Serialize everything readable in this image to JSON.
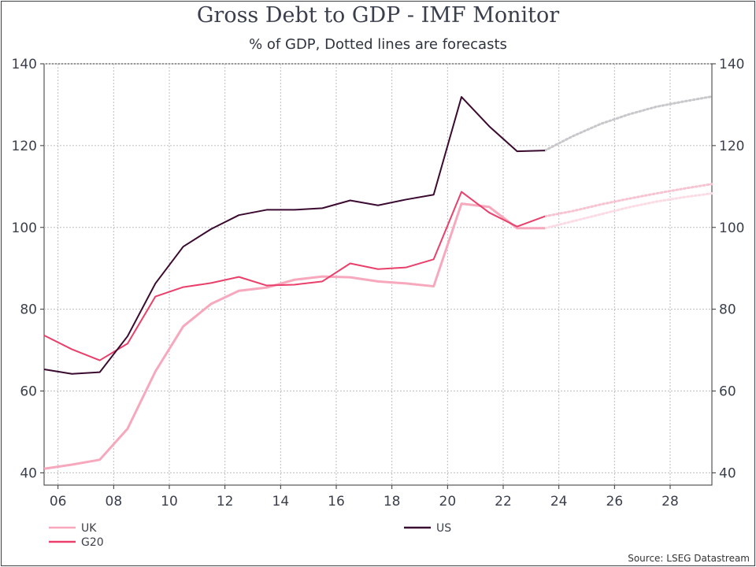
{
  "chart_data": {
    "type": "line",
    "title": "Gross Debt to GDP - IMF Monitor",
    "subtitle": "% of GDP, Dotted lines are forecasts",
    "source": "Source: LSEG Datastream",
    "xlabel": "",
    "ylabel": "",
    "xlim": [
      2005.5,
      2029.5
    ],
    "ylim": [
      37,
      140
    ],
    "y_ticks": [
      40,
      60,
      80,
      100,
      120,
      140
    ],
    "x_ticks": [
      {
        "value": 2006,
        "label": "06"
      },
      {
        "value": 2008,
        "label": "08"
      },
      {
        "value": 2010,
        "label": "10"
      },
      {
        "value": 2012,
        "label": "12"
      },
      {
        "value": 2014,
        "label": "14"
      },
      {
        "value": 2016,
        "label": "16"
      },
      {
        "value": 2018,
        "label": "18"
      },
      {
        "value": 2020,
        "label": "20"
      },
      {
        "value": 2022,
        "label": "22"
      },
      {
        "value": 2024,
        "label": "24"
      },
      {
        "value": 2026,
        "label": "26"
      },
      {
        "value": 2028,
        "label": "28"
      }
    ],
    "grid": true,
    "series": [
      {
        "name": "UK",
        "color": "#f7a8bd",
        "x": [
          2005.5,
          2006.5,
          2007.5,
          2008.5,
          2009.5,
          2010.5,
          2011.5,
          2012.5,
          2013.5,
          2014.5,
          2015.5,
          2016.5,
          2017.5,
          2018.5,
          2019.5,
          2020.5,
          2021.5,
          2022.5,
          2023.5
        ],
        "values": [
          41.0,
          42.0,
          43.2,
          50.8,
          64.8,
          75.8,
          81.3,
          84.5,
          85.3,
          87.2,
          88.0,
          87.8,
          86.8,
          86.3,
          85.6,
          105.8,
          105.0,
          99.8,
          99.8
        ],
        "forecast_x": [
          2023.5,
          2024.5,
          2025.5,
          2026.5,
          2027.5,
          2028.5,
          2029.5
        ],
        "forecast_values": [
          99.8,
          101.5,
          103.2,
          104.9,
          106.3,
          107.4,
          108.3
        ]
      },
      {
        "name": "G20",
        "color": "#ea3f6a",
        "x": [
          2005.5,
          2006.5,
          2007.5,
          2008.5,
          2009.5,
          2010.5,
          2011.5,
          2012.5,
          2013.5,
          2014.5,
          2015.5,
          2016.5,
          2017.5,
          2018.5,
          2019.5,
          2020.5,
          2021.5,
          2022.5,
          2023.5
        ],
        "values": [
          73.6,
          70.2,
          67.5,
          71.6,
          83.1,
          85.4,
          86.4,
          87.9,
          85.8,
          86.0,
          86.8,
          91.2,
          89.8,
          90.2,
          92.2,
          108.7,
          103.6,
          100.2,
          102.7
        ],
        "forecast_x": [
          2023.5,
          2024.5,
          2025.5,
          2026.5,
          2027.5,
          2028.5,
          2029.5
        ],
        "forecast_values": [
          102.7,
          104.0,
          105.6,
          107.0,
          108.3,
          109.5,
          110.6
        ]
      },
      {
        "name": "US",
        "color": "#3b0a30",
        "x": [
          2005.5,
          2006.5,
          2007.5,
          2008.5,
          2009.5,
          2010.5,
          2011.5,
          2012.5,
          2013.5,
          2014.5,
          2015.5,
          2016.5,
          2017.5,
          2018.5,
          2019.5,
          2020.5,
          2021.5,
          2022.5,
          2023.5
        ],
        "values": [
          65.3,
          64.2,
          64.6,
          73.4,
          86.3,
          95.3,
          99.6,
          103.0,
          104.3,
          104.3,
          104.7,
          106.6,
          105.4,
          106.8,
          108.0,
          131.9,
          124.7,
          118.6,
          118.8
        ],
        "forecast_x": [
          2023.5,
          2024.5,
          2025.5,
          2026.5,
          2027.5,
          2028.5,
          2029.5
        ],
        "forecast_values": [
          118.8,
          122.3,
          125.3,
          127.6,
          129.5,
          130.8,
          132.0
        ]
      }
    ],
    "forecast_color": "#c8c8cc",
    "legend_position": "bottom"
  }
}
